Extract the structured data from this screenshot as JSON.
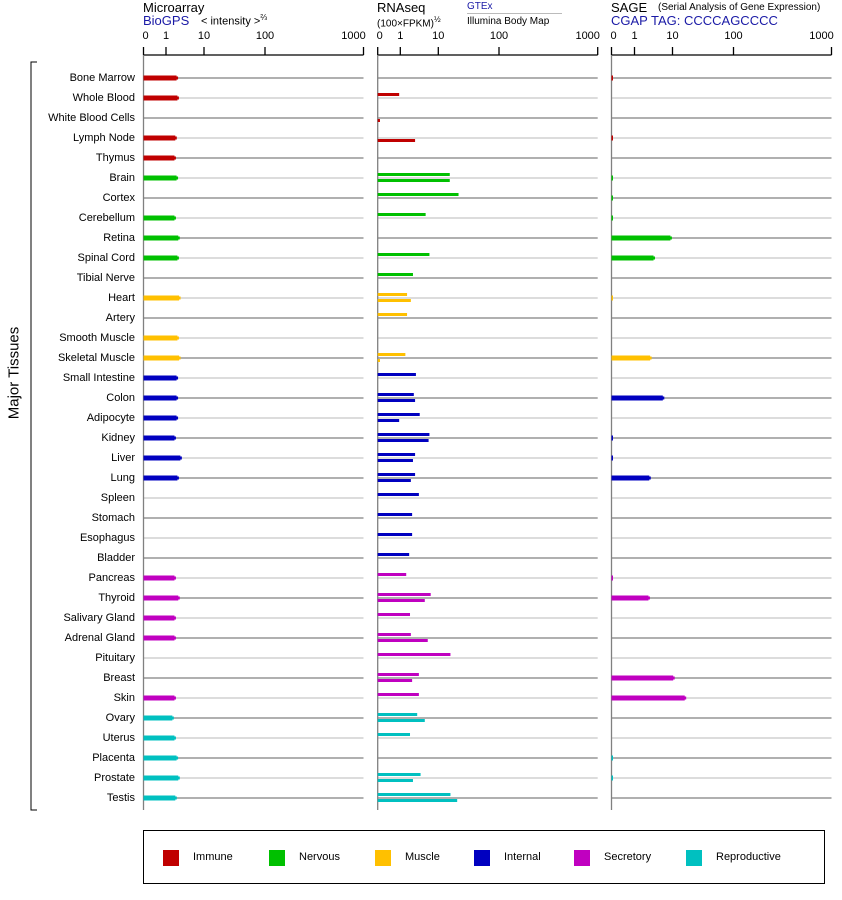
{
  "colors": {
    "Immune": "#c00000",
    "Nervous": "#00c000",
    "Muscle": "#ffc000",
    "Internal": "#0000c0",
    "Secretory": "#c000c0",
    "Reproductive": "#00c0c0"
  },
  "header": {
    "microarray": {
      "title": "Microarray",
      "source": "BioGPS",
      "unit": "< intensity >",
      "unit_exp": "⅔"
    },
    "rnaseq": {
      "title": "RNAseq",
      "unit": "(100×FPKM)",
      "unit_exp": "½",
      "source_top": "GTEx",
      "source_bottom": "Illumina Body Map"
    },
    "sage": {
      "title": "SAGE",
      "subtitle": "(Serial Analysis of Gene Expression)",
      "tag": "CGAP TAG: CCCCAGCCCC"
    }
  },
  "chart_data": {
    "type": "bar",
    "title": "Major Tissues",
    "ylabel": "Major Tissues",
    "axis_ticks": [
      "0",
      "1",
      "10",
      "100",
      "1000"
    ],
    "tick_values": [
      0,
      1,
      10,
      100,
      1000
    ],
    "xlim": [
      0,
      1000
    ],
    "legend": [
      "Immune",
      "Nervous",
      "Muscle",
      "Internal",
      "Secretory",
      "Reproductive"
    ],
    "legend_position": "bottom",
    "series_names": [
      "Microarray (BioGPS)",
      "RNAseq GTEx",
      "RNAseq Illumina Body Map",
      "SAGE"
    ],
    "tissues": [
      {
        "name": "Bone Marrow",
        "group": "Immune",
        "micro": 3.5,
        "gtex": null,
        "illumina": null,
        "sage": 0.05
      },
      {
        "name": "Whole Blood",
        "group": "Immune",
        "micro": 3.7,
        "gtex": 0.95,
        "illumina": null,
        "sage": null
      },
      {
        "name": "White Blood Cells",
        "group": "Immune",
        "micro": null,
        "gtex": null,
        "illumina": 0.1,
        "sage": null
      },
      {
        "name": "Lymph Node",
        "group": "Immune",
        "micro": 3.2,
        "gtex": null,
        "illumina": 4.5,
        "sage": 0.05
      },
      {
        "name": "Thymus",
        "group": "Immune",
        "micro": 3.0,
        "gtex": null,
        "illumina": null,
        "sage": null
      },
      {
        "name": "Brain",
        "group": "Nervous",
        "micro": 3.5,
        "gtex": 27,
        "illumina": 27,
        "sage": 0.05
      },
      {
        "name": "Cortex",
        "group": "Nervous",
        "micro": null,
        "gtex": 40,
        "illumina": null,
        "sage": 0.05
      },
      {
        "name": "Cerebellum",
        "group": "Nervous",
        "micro": 3.0,
        "gtex": 7,
        "illumina": null,
        "sage": 0.05
      },
      {
        "name": "Retina",
        "group": "Nervous",
        "micro": 3.9,
        "gtex": null,
        "illumina": null,
        "sage": 9.5
      },
      {
        "name": "Spinal Cord",
        "group": "Nervous",
        "micro": 3.7,
        "gtex": 7.9,
        "illumina": null,
        "sage": 5.5
      },
      {
        "name": "Tibial Nerve",
        "group": "Nervous",
        "micro": null,
        "gtex": 4,
        "illumina": null,
        "sage": null
      },
      {
        "name": "Heart",
        "group": "Muscle",
        "micro": 4.1,
        "gtex": 2.6,
        "illumina": 3.5,
        "sage": 0.05
      },
      {
        "name": "Artery",
        "group": "Muscle",
        "micro": null,
        "gtex": 2.6,
        "illumina": null,
        "sage": null
      },
      {
        "name": "Smooth Muscle",
        "group": "Muscle",
        "micro": 3.7,
        "gtex": null,
        "illumina": null,
        "sage": null
      },
      {
        "name": "Skeletal Muscle",
        "group": "Muscle",
        "micro": 4.1,
        "gtex": 2.2,
        "illumina": 0.1,
        "sage": 4.7
      },
      {
        "name": "Small Intestine",
        "group": "Internal",
        "micro": 3.5,
        "gtex": 4.7,
        "illumina": null,
        "sage": null
      },
      {
        "name": "Colon",
        "group": "Internal",
        "micro": 3.5,
        "gtex": 4.2,
        "illumina": 4.5,
        "sage": 7.7
      },
      {
        "name": "Adipocyte",
        "group": "Internal",
        "micro": 3.5,
        "gtex": 5.6,
        "illumina": 0.95,
        "sage": null
      },
      {
        "name": "Kidney",
        "group": "Internal",
        "micro": 3.0,
        "gtex": 7.9,
        "illumina": 7.7,
        "sage": 0.05
      },
      {
        "name": "Liver",
        "group": "Internal",
        "micro": 4.4,
        "gtex": 4.5,
        "illumina": 4.0,
        "sage": 0.05
      },
      {
        "name": "Lung",
        "group": "Internal",
        "micro": 3.7,
        "gtex": 4.5,
        "illumina": 3.5,
        "sage": 4.5
      },
      {
        "name": "Spleen",
        "group": "Internal",
        "micro": null,
        "gtex": 5.4,
        "illumina": null,
        "sage": null
      },
      {
        "name": "Stomach",
        "group": "Internal",
        "micro": null,
        "gtex": 3.8,
        "illumina": null,
        "sage": null
      },
      {
        "name": "Esophagus",
        "group": "Internal",
        "micro": null,
        "gtex": 3.8,
        "illumina": null,
        "sage": null
      },
      {
        "name": "Bladder",
        "group": "Internal",
        "micro": null,
        "gtex": 3.1,
        "illumina": null,
        "sage": null
      },
      {
        "name": "Pancreas",
        "group": "Secretory",
        "micro": 3.0,
        "gtex": 2.4,
        "illumina": null,
        "sage": 0.05
      },
      {
        "name": "Thyroid",
        "group": "Secretory",
        "micro": 3.9,
        "gtex": 8.2,
        "illumina": 6.8,
        "sage": 4.3
      },
      {
        "name": "Salivary Gland",
        "group": "Secretory",
        "micro": 3.0,
        "gtex": 3.3,
        "illumina": null,
        "sage": null
      },
      {
        "name": "Adrenal Gland",
        "group": "Secretory",
        "micro": 3.0,
        "gtex": 3.5,
        "illumina": 7.5,
        "sage": null
      },
      {
        "name": "Pituitary",
        "group": "Secretory",
        "micro": null,
        "gtex": 28,
        "illumina": null,
        "sage": null
      },
      {
        "name": "Breast",
        "group": "Secretory",
        "micro": null,
        "gtex": 5.4,
        "illumina": 3.8,
        "sage": 11
      },
      {
        "name": "Skin",
        "group": "Secretory",
        "micro": 3.0,
        "gtex": 5.4,
        "illumina": null,
        "sage": 28
      },
      {
        "name": "Ovary",
        "group": "Reproductive",
        "micro": 2.5,
        "gtex": 5,
        "illumina": 6.8,
        "sage": null
      },
      {
        "name": "Uterus",
        "group": "Reproductive",
        "micro": 3.0,
        "gtex": 3.3,
        "illumina": null,
        "sage": null
      },
      {
        "name": "Placenta",
        "group": "Reproductive",
        "micro": 3.5,
        "gtex": null,
        "illumina": null,
        "sage": 0.05
      },
      {
        "name": "Prostate",
        "group": "Reproductive",
        "micro": 3.9,
        "gtex": 5.8,
        "illumina": 4.0,
        "sage": 0.05
      },
      {
        "name": "Testis",
        "group": "Reproductive",
        "micro": 3.2,
        "gtex": 28,
        "illumina": 38,
        "sage": null
      }
    ]
  }
}
